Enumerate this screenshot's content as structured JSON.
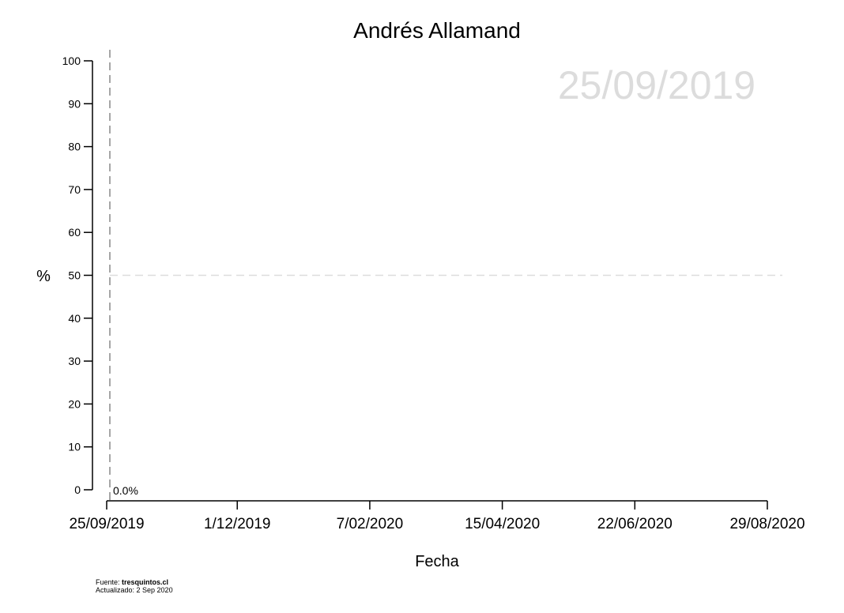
{
  "chart_data": {
    "type": "line",
    "title": "Andrés Allamand",
    "date_overlay": "25/09/2019",
    "xlabel": "Fecha",
    "ylabel": "%",
    "x_type": "date",
    "x_range": [
      "2019-09-25",
      "2020-08-29"
    ],
    "x_ticks": [
      {
        "date": "2019-09-25",
        "label": "25/09/2019"
      },
      {
        "date": "2019-12-01",
        "label": "1/12/2019"
      },
      {
        "date": "2020-02-07",
        "label": "7/02/2020"
      },
      {
        "date": "2020-04-15",
        "label": "15/04/2020"
      },
      {
        "date": "2020-06-22",
        "label": "22/06/2020"
      },
      {
        "date": "2020-08-29",
        "label": "29/08/2020"
      }
    ],
    "ylim": [
      0,
      100
    ],
    "y_ticks": [
      0,
      10,
      20,
      30,
      40,
      50,
      60,
      70,
      80,
      90,
      100
    ],
    "reference_line_y": 50,
    "current_date_marker": "2019-09-25",
    "series": [
      {
        "points": [
          {
            "date": "2019-09-25",
            "value": 0.0
          }
        ],
        "value_label": "0.0%"
      }
    ],
    "grid": false,
    "colors": {
      "axis": "#000000",
      "reference_line": "#dddddd",
      "date_marker": "#888888",
      "date_overlay": "#dcdcdc"
    }
  },
  "footer": {
    "source_prefix": "Fuente: ",
    "source_site": "tresquintos.cl",
    "updated": "Actualizado: 2 Sep 2020"
  }
}
